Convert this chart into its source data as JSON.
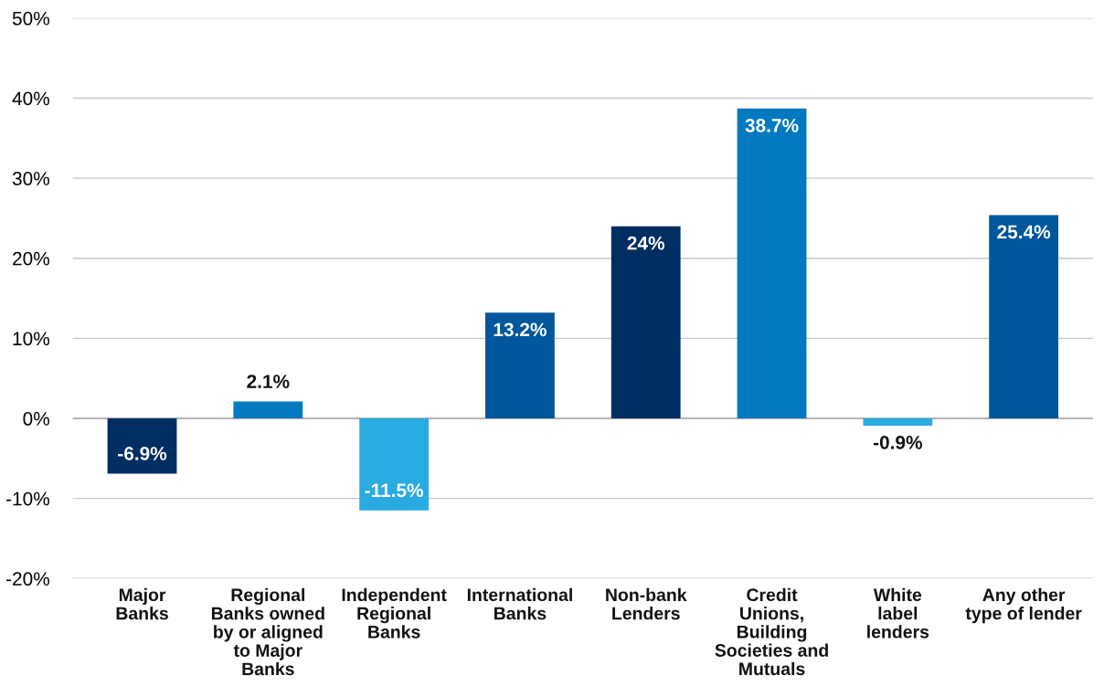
{
  "chart_data": {
    "type": "bar",
    "categories": [
      "Major\nBanks",
      "Regional\nBanks owned\nby or aligned\nto Major\nBanks",
      "Independent\nRegional\nBanks",
      "International\nBanks",
      "Non-bank\nLenders",
      "Credit\nUnions,\nBuilding\nSocieties and\nMutuals",
      "White\nlabel\nlenders",
      "Any other\ntype of lender"
    ],
    "values": [
      -6.9,
      2.1,
      -11.5,
      13.2,
      24,
      38.7,
      -0.9,
      25.4
    ],
    "value_labels": [
      "-6.9%",
      "2.1%",
      "-11.5%",
      "13.2%",
      "24%",
      "38.7%",
      "-0.9%",
      "25.4%"
    ],
    "colors": [
      "#002d62",
      "#0079c1",
      "#29abe2",
      "#00579b",
      "#002d62",
      "#0079c1",
      "#29abe2",
      "#00579b"
    ],
    "ylim": [
      -20,
      50
    ],
    "yticks": [
      {
        "value": -20,
        "label": "-20%"
      },
      {
        "value": -10,
        "label": "-10%"
      },
      {
        "value": 0,
        "label": "0%"
      },
      {
        "value": 10,
        "label": "10%"
      },
      {
        "value": 20,
        "label": "20%"
      },
      {
        "value": 30,
        "label": "30%"
      },
      {
        "value": 40,
        "label": "40%"
      },
      {
        "value": 50,
        "label": "50%"
      }
    ],
    "grid": "y"
  }
}
